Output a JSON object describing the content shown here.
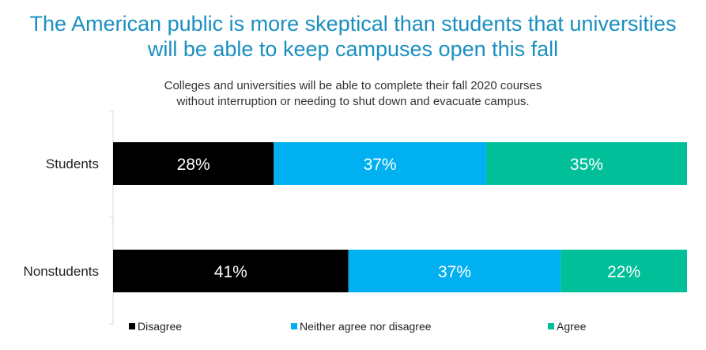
{
  "title_line1": "The American public is more skeptical than students that universities",
  "title_line2": "will be able to keep campuses open this fall",
  "subtitle_line1": "Colleges and universities will be able to complete their fall 2020 courses",
  "subtitle_line2": "without interruption or needing to shut down and evacuate campus.",
  "colors": {
    "title": "#1a8fc0",
    "Disagree": "#000000",
    "Neither agree nor disagree": "#00b0f0",
    "Agree": "#00bf99"
  },
  "chart_data": {
    "type": "bar",
    "orientation": "horizontal",
    "stacked": true,
    "categories": [
      "Students",
      "Nonstudents"
    ],
    "series": [
      {
        "name": "Disagree",
        "values": [
          28,
          41
        ],
        "labels": [
          "28%",
          "41%"
        ]
      },
      {
        "name": "Neither agree nor disagree",
        "values": [
          37,
          37
        ],
        "labels": [
          "37%",
          "37%"
        ]
      },
      {
        "name": "Agree",
        "values": [
          35,
          22
        ],
        "labels": [
          "35%",
          "22%"
        ]
      }
    ],
    "xlim": [
      0,
      100
    ],
    "legend": "bottom",
    "grid": false
  }
}
